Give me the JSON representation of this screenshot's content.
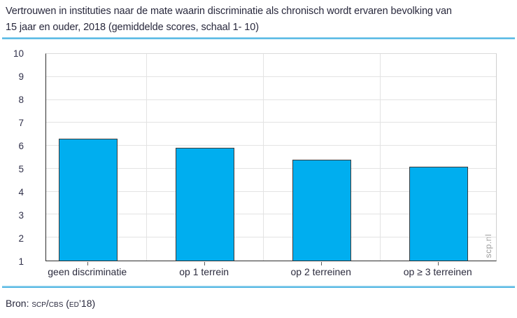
{
  "title": {
    "line1": "Vertrouwen in instituties naar de mate waarin discriminatie als chronisch wordt ervaren bevolking van",
    "line2": "15 jaar en ouder, 2018 (gemiddelde scores, schaal 1- 10)"
  },
  "footer": {
    "prefix": "Bron: ",
    "source_caps": "scp/cbs (ed’18)"
  },
  "watermark": "scp.nl",
  "colors": {
    "bar_fill": "#00aeef",
    "bar_border": "#3d3d3d",
    "rule_blue": "#3aade0",
    "gridline": "#e3e3e3",
    "axis_dark": "#2d2d2d",
    "text_dark": "#28283c",
    "watermark_gray": "#9c9c9c"
  },
  "chart_data": {
    "type": "bar",
    "title": "Vertrouwen in instituties naar de mate waarin discriminatie als chronisch wordt ervaren bevolking van 15 jaar en ouder, 2018 (gemiddelde scores, schaal 1- 10)",
    "categories": [
      "geen discriminatie",
      "op 1 terrein",
      "op 2 terreinen",
      "op ≥ 3 terreinen"
    ],
    "values": [
      6.3,
      5.9,
      5.4,
      5.1
    ],
    "xlabel": "",
    "ylabel": "",
    "ylim": [
      1,
      10
    ],
    "yticks": [
      1,
      2,
      3,
      4,
      5,
      6,
      7,
      8,
      9,
      10
    ],
    "grid": true,
    "legend": false,
    "source": "Bron: scp/cbs (ed’18)"
  }
}
